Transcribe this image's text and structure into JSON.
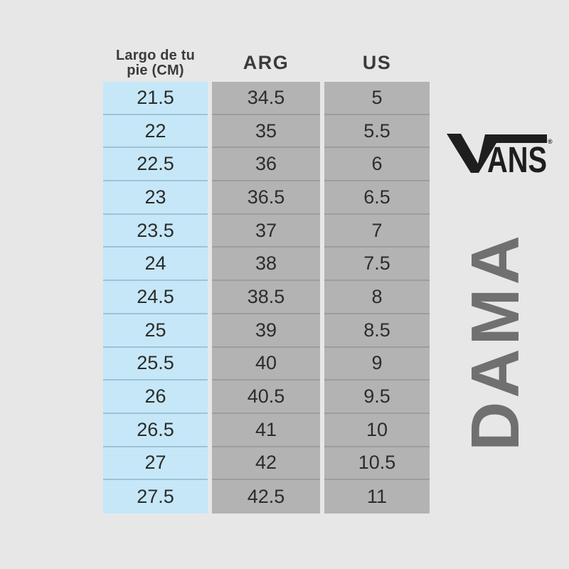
{
  "colors": {
    "page-bg": "#e7e7e7",
    "foot-col-bg": "#c6e7f7",
    "size-col-bg": "#b3b3b3",
    "cell-text": "#2c2c2c",
    "header-text": "#3b3b3b",
    "logo": "#1e1e1e",
    "side-label": "#707070"
  },
  "table": {
    "header": {
      "col1_line1": "Largo de tu",
      "col1_line2": "pie (CM)",
      "col2": "ARG",
      "col3": "US"
    },
    "rows": [
      [
        "21.5",
        "34.5",
        "5"
      ],
      [
        "22",
        "35",
        "5.5"
      ],
      [
        "22.5",
        "36",
        "6"
      ],
      [
        "23",
        "36.5",
        "6.5"
      ],
      [
        "23.5",
        "37",
        "7"
      ],
      [
        "24",
        "38",
        "7.5"
      ],
      [
        "24.5",
        "38.5",
        "8"
      ],
      [
        "25",
        "39",
        "8.5"
      ],
      [
        "25.5",
        "40",
        "9"
      ],
      [
        "26",
        "40.5",
        "9.5"
      ],
      [
        "26.5",
        "41",
        "10"
      ],
      [
        "27",
        "42",
        "10.5"
      ],
      [
        "27.5",
        "42.5",
        "11"
      ]
    ]
  },
  "brand": {
    "name": "VANS",
    "letters_after_v": "ANS",
    "registered_mark": "®"
  },
  "side_label": {
    "text": "DAMA"
  },
  "chart_data": {
    "type": "table",
    "columns": [
      "Largo de tu pie (CM)",
      "ARG",
      "US"
    ],
    "rows": [
      [
        21.5,
        34.5,
        5
      ],
      [
        22,
        35,
        5.5
      ],
      [
        22.5,
        36,
        6
      ],
      [
        23,
        36.5,
        6.5
      ],
      [
        23.5,
        37,
        7
      ],
      [
        24,
        38,
        7.5
      ],
      [
        24.5,
        38.5,
        8
      ],
      [
        25,
        39,
        8.5
      ],
      [
        25.5,
        40,
        9
      ],
      [
        26,
        40.5,
        9.5
      ],
      [
        26.5,
        41,
        10
      ],
      [
        27,
        42,
        10.5
      ],
      [
        27.5,
        42.5,
        11
      ]
    ],
    "annotations": [
      "VANS®",
      "DAMA"
    ],
    "layout": "foot-length column highlighted blue, size columns gray, vertical DAMA label and Vans logo on right side"
  }
}
